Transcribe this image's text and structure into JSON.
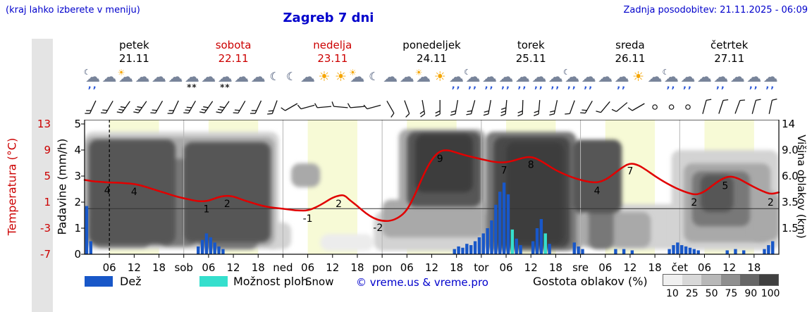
{
  "header": {
    "note_left": "(kraj lahko izberete v meniju)",
    "title": "Zagreb 7 dni",
    "updated": "Zadnja posodobitev: 21.11.2025 - 06:09"
  },
  "axes": {
    "temp_title": "Temperatura (°C)",
    "precip_title": "Padavine (mm/h)",
    "cloud_title": "Višina oblakov (km)",
    "temp_ticks": [
      "13",
      "9",
      "5",
      "1",
      "-3",
      "-7"
    ],
    "precip_ticks": [
      "5",
      "4",
      "3",
      "2",
      "1",
      "0"
    ],
    "cloud_ticks": [
      "14",
      "9.0",
      "6.0",
      "3.5",
      "1.5",
      ""
    ]
  },
  "days": [
    {
      "name": "petek",
      "date": "21.11",
      "color": "#000000"
    },
    {
      "name": "sobota",
      "date": "22.11",
      "color": "#cc0000"
    },
    {
      "name": "nedelja",
      "date": "23.11",
      "color": "#cc0000"
    },
    {
      "name": "ponedeljek",
      "date": "24.11",
      "color": "#000000"
    },
    {
      "name": "torek",
      "date": "25.11",
      "color": "#000000"
    },
    {
      "name": "sreda",
      "date": "26.11",
      "color": "#000000"
    },
    {
      "name": "četrtek",
      "date": "27.11",
      "color": "#000000"
    }
  ],
  "legend": {
    "rain": "Dež",
    "shower": "Možnost ploh",
    "snow": "Snow",
    "copyright": "© vreme.us & vreme.pro",
    "cloud_density": "Gostota oblakov (%)",
    "density_ticks": [
      "10",
      "25",
      "50",
      "75",
      "90",
      "100"
    ]
  },
  "colors": {
    "rain": "#1857c8",
    "shower": "#35dfcd",
    "temp_line": "#e10000",
    "accent_blue": "#0000cc",
    "accent_red": "#cc0000",
    "day_band": "#f7fad6",
    "density_scale": [
      "#f0f0f0",
      "#d8d8d8",
      "#b8b8b8",
      "#8f8f8f",
      "#666666",
      "#404040"
    ]
  },
  "chart_data": {
    "type": "line",
    "title": "Zagreb 7 dni",
    "x_unit": "hour",
    "x_range": [
      0,
      168
    ],
    "temp_axis_range": [
      -7,
      13
    ],
    "precip_axis_range": [
      0,
      5
    ],
    "cloud_km_ticks": [
      0,
      1.5,
      3.5,
      6,
      9,
      14
    ],
    "now_line_hour": 6,
    "zero_line_temp": 0,
    "day_bands": [
      [
        6,
        18
      ],
      [
        30,
        42
      ],
      [
        54,
        66
      ],
      [
        78,
        90
      ],
      [
        102,
        114
      ],
      [
        126,
        138
      ],
      [
        150,
        162
      ]
    ],
    "x_ticks": [
      [
        6,
        "06"
      ],
      [
        12,
        "12"
      ],
      [
        18,
        "18"
      ],
      [
        24,
        "sob"
      ],
      [
        30,
        "06"
      ],
      [
        36,
        "12"
      ],
      [
        42,
        "18"
      ],
      [
        48,
        "ned"
      ],
      [
        54,
        "06"
      ],
      [
        60,
        "12"
      ],
      [
        66,
        "18"
      ],
      [
        72,
        "pon"
      ],
      [
        78,
        "06"
      ],
      [
        84,
        "12"
      ],
      [
        90,
        "18"
      ],
      [
        96,
        "tor"
      ],
      [
        102,
        "06"
      ],
      [
        108,
        "12"
      ],
      [
        114,
        "18"
      ],
      [
        120,
        "sre"
      ],
      [
        126,
        "06"
      ],
      [
        132,
        "12"
      ],
      [
        138,
        "18"
      ],
      [
        144,
        "čet"
      ],
      [
        150,
        "06"
      ],
      [
        156,
        "12"
      ],
      [
        162,
        "18"
      ]
    ],
    "temperature": {
      "name": "Temperatura (°C)",
      "points": [
        [
          0,
          4.4
        ],
        [
          2,
          4.2
        ],
        [
          4,
          4.1
        ],
        [
          6,
          4.0
        ],
        [
          8,
          4.0
        ],
        [
          10,
          3.9
        ],
        [
          12,
          3.8
        ],
        [
          14,
          3.5
        ],
        [
          16,
          3.1
        ],
        [
          18,
          2.7
        ],
        [
          20,
          2.3
        ],
        [
          22,
          1.9
        ],
        [
          24,
          1.6
        ],
        [
          26,
          1.3
        ],
        [
          28,
          1.1
        ],
        [
          30,
          1.2
        ],
        [
          32,
          1.7
        ],
        [
          34,
          2.0
        ],
        [
          36,
          1.9
        ],
        [
          38,
          1.4
        ],
        [
          40,
          1.0
        ],
        [
          42,
          0.6
        ],
        [
          44,
          0.3
        ],
        [
          46,
          0.1
        ],
        [
          48,
          0.0
        ],
        [
          50,
          -0.2
        ],
        [
          52,
          -0.3
        ],
        [
          54,
          -0.3
        ],
        [
          56,
          0.2
        ],
        [
          58,
          0.9
        ],
        [
          60,
          1.7
        ],
        [
          62,
          2.1
        ],
        [
          63,
          2.0
        ],
        [
          64,
          1.4
        ],
        [
          66,
          0.4
        ],
        [
          68,
          -0.7
        ],
        [
          70,
          -1.5
        ],
        [
          72,
          -1.9
        ],
        [
          74,
          -1.9
        ],
        [
          76,
          -1.4
        ],
        [
          78,
          -0.3
        ],
        [
          80,
          2.2
        ],
        [
          82,
          5.2
        ],
        [
          84,
          7.6
        ],
        [
          86,
          8.9
        ],
        [
          88,
          9.0
        ],
        [
          90,
          8.6
        ],
        [
          92,
          8.2
        ],
        [
          94,
          7.9
        ],
        [
          96,
          7.6
        ],
        [
          98,
          7.3
        ],
        [
          100,
          7.1
        ],
        [
          102,
          7.1
        ],
        [
          104,
          7.4
        ],
        [
          106,
          7.8
        ],
        [
          108,
          8.0
        ],
        [
          110,
          7.5
        ],
        [
          112,
          6.7
        ],
        [
          114,
          5.9
        ],
        [
          116,
          5.3
        ],
        [
          118,
          4.8
        ],
        [
          120,
          4.4
        ],
        [
          122,
          4.1
        ],
        [
          124,
          4.0
        ],
        [
          126,
          4.4
        ],
        [
          128,
          5.3
        ],
        [
          130,
          6.3
        ],
        [
          132,
          7.0
        ],
        [
          134,
          6.7
        ],
        [
          136,
          5.9
        ],
        [
          138,
          5.0
        ],
        [
          140,
          4.2
        ],
        [
          142,
          3.5
        ],
        [
          144,
          2.9
        ],
        [
          146,
          2.4
        ],
        [
          148,
          2.1
        ],
        [
          150,
          2.6
        ],
        [
          152,
          3.6
        ],
        [
          154,
          4.5
        ],
        [
          156,
          5.0
        ],
        [
          158,
          4.7
        ],
        [
          160,
          4.0
        ],
        [
          162,
          3.3
        ],
        [
          164,
          2.7
        ],
        [
          166,
          2.2
        ],
        [
          168,
          2.5
        ]
      ]
    },
    "temp_labels": [
      [
        5.5,
        "4"
      ],
      [
        12,
        "4"
      ],
      [
        29.5,
        "1"
      ],
      [
        34.5,
        "2"
      ],
      [
        54,
        "-1"
      ],
      [
        61.5,
        "2"
      ],
      [
        71,
        "-2"
      ],
      [
        86,
        "9"
      ],
      [
        101.5,
        "7"
      ],
      [
        108,
        "8"
      ],
      [
        124,
        "4"
      ],
      [
        132,
        "7"
      ],
      [
        147.5,
        "2"
      ],
      [
        155,
        "5"
      ],
      [
        166,
        "2"
      ]
    ],
    "precipitation": [
      [
        0.5,
        1.85,
        "r"
      ],
      [
        1.5,
        0.5,
        "r"
      ],
      [
        27.5,
        0.3,
        "r"
      ],
      [
        28.5,
        0.55,
        "r"
      ],
      [
        29.5,
        0.8,
        "r"
      ],
      [
        30.5,
        0.65,
        "r"
      ],
      [
        31.5,
        0.45,
        "r"
      ],
      [
        32.5,
        0.3,
        "r"
      ],
      [
        33.5,
        0.2,
        "r"
      ],
      [
        89.5,
        0.2,
        "r"
      ],
      [
        90.5,
        0.3,
        "r"
      ],
      [
        91.5,
        0.25,
        "r"
      ],
      [
        92.5,
        0.4,
        "r"
      ],
      [
        93.5,
        0.35,
        "r"
      ],
      [
        94.5,
        0.5,
        "r"
      ],
      [
        95.5,
        0.65,
        "r"
      ],
      [
        96.5,
        0.8,
        "r"
      ],
      [
        97.5,
        1.0,
        "r"
      ],
      [
        98.5,
        1.3,
        "r"
      ],
      [
        99.5,
        1.9,
        "r"
      ],
      [
        100.5,
        2.4,
        "r"
      ],
      [
        101.5,
        2.75,
        "r"
      ],
      [
        102.5,
        2.3,
        "r"
      ],
      [
        103.5,
        0.95,
        "s"
      ],
      [
        104.5,
        0.6,
        "r"
      ],
      [
        105.5,
        0.35,
        "r"
      ],
      [
        108.5,
        0.5,
        "r"
      ],
      [
        109.5,
        1.0,
        "r"
      ],
      [
        110.5,
        1.35,
        "r"
      ],
      [
        111.5,
        0.8,
        "s"
      ],
      [
        112.5,
        0.4,
        "r"
      ],
      [
        118.5,
        0.45,
        "r"
      ],
      [
        119.5,
        0.3,
        "r"
      ],
      [
        120.5,
        0.2,
        "r"
      ],
      [
        128.5,
        0.2,
        "r"
      ],
      [
        130.5,
        0.2,
        "r"
      ],
      [
        132.5,
        0.15,
        "r"
      ],
      [
        141.5,
        0.2,
        "r"
      ],
      [
        142.5,
        0.35,
        "r"
      ],
      [
        143.5,
        0.45,
        "r"
      ],
      [
        144.5,
        0.35,
        "r"
      ],
      [
        145.5,
        0.3,
        "r"
      ],
      [
        146.5,
        0.25,
        "r"
      ],
      [
        147.5,
        0.2,
        "r"
      ],
      [
        148.5,
        0.15,
        "r"
      ],
      [
        155.5,
        0.15,
        "r"
      ],
      [
        157.5,
        0.2,
        "r"
      ],
      [
        159.5,
        0.15,
        "r"
      ],
      [
        164.5,
        0.2,
        "r"
      ],
      [
        165.5,
        0.35,
        "r"
      ],
      [
        166.5,
        0.5,
        "r"
      ]
    ],
    "clouds": [
      [
        0,
        47,
        0.3,
        12.5,
        25
      ],
      [
        0,
        46,
        0.5,
        11.5,
        50
      ],
      [
        1,
        22,
        0.6,
        11.0,
        90
      ],
      [
        24,
        45,
        0.7,
        10.5,
        90
      ],
      [
        18,
        27,
        0.5,
        8.0,
        75
      ],
      [
        2,
        16,
        0.4,
        2.5,
        75
      ],
      [
        28,
        42,
        0.3,
        2.2,
        75
      ],
      [
        44,
        50,
        0.3,
        2.0,
        25
      ],
      [
        50,
        57,
        5.0,
        7.5,
        50
      ],
      [
        57,
        70,
        0.2,
        1.2,
        10
      ],
      [
        70,
        98,
        0.2,
        2.8,
        25
      ],
      [
        72,
        97,
        1.0,
        3.8,
        50
      ],
      [
        76,
        97,
        2.7,
        13.0,
        50
      ],
      [
        78,
        96,
        3.2,
        12.5,
        90
      ],
      [
        80,
        94,
        4.5,
        12.0,
        100
      ],
      [
        97,
        119,
        0.2,
        12.5,
        75
      ],
      [
        99,
        117.5,
        0.4,
        11.5,
        95
      ],
      [
        102,
        116,
        0.6,
        10.5,
        100
      ],
      [
        117,
        121,
        0.3,
        3.0,
        50
      ],
      [
        118,
        130,
        2.7,
        11.0,
        90
      ],
      [
        120,
        137,
        0.4,
        2.8,
        50
      ],
      [
        122,
        128,
        0.3,
        3.4,
        75
      ],
      [
        128,
        145,
        0.3,
        3.4,
        25
      ],
      [
        142,
        168,
        0.25,
        9.0,
        25
      ],
      [
        145,
        166,
        0.7,
        7.5,
        50
      ],
      [
        147,
        161,
        1.7,
        6.6,
        75
      ],
      [
        149,
        157,
        2.8,
        6.2,
        90
      ],
      [
        161,
        168,
        0.8,
        4.6,
        50
      ]
    ],
    "wind": [
      [
        2,
        205,
        2
      ],
      [
        6,
        210,
        2
      ],
      [
        10,
        215,
        3
      ],
      [
        14,
        215,
        3
      ],
      [
        18,
        210,
        2
      ],
      [
        22,
        205,
        2
      ],
      [
        26,
        210,
        3
      ],
      [
        30,
        215,
        3
      ],
      [
        34,
        215,
        3
      ],
      [
        38,
        210,
        2
      ],
      [
        42,
        205,
        2
      ],
      [
        46,
        200,
        2
      ],
      [
        50,
        240,
        1
      ],
      [
        54,
        255,
        1
      ],
      [
        58,
        265,
        1
      ],
      [
        62,
        275,
        1
      ],
      [
        66,
        265,
        1
      ],
      [
        70,
        255,
        1
      ],
      [
        74,
        150,
        1
      ],
      [
        78,
        160,
        1
      ],
      [
        82,
        170,
        2
      ],
      [
        86,
        180,
        2
      ],
      [
        90,
        190,
        2
      ],
      [
        94,
        195,
        2
      ],
      [
        98,
        190,
        2
      ],
      [
        102,
        185,
        3
      ],
      [
        106,
        182,
        2
      ],
      [
        110,
        185,
        2
      ],
      [
        114,
        192,
        2
      ],
      [
        118,
        200,
        1
      ],
      [
        122,
        210,
        2
      ],
      [
        126,
        220,
        1
      ],
      [
        130,
        230,
        1
      ],
      [
        134,
        240,
        1
      ],
      [
        138,
        null,
        0
      ],
      [
        142,
        null,
        0
      ],
      [
        146,
        null,
        0
      ],
      [
        150,
        15,
        1
      ],
      [
        154,
        18,
        1
      ],
      [
        158,
        20,
        1
      ],
      [
        162,
        15,
        1
      ],
      [
        166,
        12,
        1
      ]
    ],
    "icons": [
      [
        2,
        "moon-rain"
      ],
      [
        6,
        "cloud"
      ],
      [
        10,
        "partly"
      ],
      [
        14,
        "cloud"
      ],
      [
        18,
        "cloud"
      ],
      [
        22,
        "cloud"
      ],
      [
        26,
        "snow"
      ],
      [
        30,
        "cloud"
      ],
      [
        34,
        "snow"
      ],
      [
        38,
        "cloud"
      ],
      [
        42,
        "cloud"
      ],
      [
        46,
        "moon"
      ],
      [
        50,
        "moon"
      ],
      [
        54,
        "cloud"
      ],
      [
        58,
        "sun"
      ],
      [
        62,
        "sun"
      ],
      [
        66,
        "partly"
      ],
      [
        70,
        "moon"
      ],
      [
        74,
        "cloud"
      ],
      [
        78,
        "cloud"
      ],
      [
        82,
        "partly"
      ],
      [
        86,
        "sun"
      ],
      [
        90,
        "rain"
      ],
      [
        94,
        "moon-rain"
      ],
      [
        98,
        "rain"
      ],
      [
        102,
        "rain"
      ],
      [
        106,
        "rain"
      ],
      [
        110,
        "rain"
      ],
      [
        114,
        "rain"
      ],
      [
        118,
        "moon-rain"
      ],
      [
        122,
        "rain"
      ],
      [
        126,
        "cloud"
      ],
      [
        130,
        "rain"
      ],
      [
        134,
        "sun"
      ],
      [
        138,
        "cloud"
      ],
      [
        142,
        "moon-rain"
      ],
      [
        146,
        "rain"
      ],
      [
        150,
        "cloud"
      ],
      [
        154,
        "rain"
      ],
      [
        158,
        "cloud"
      ],
      [
        162,
        "rain"
      ],
      [
        166,
        "rain"
      ]
    ]
  }
}
